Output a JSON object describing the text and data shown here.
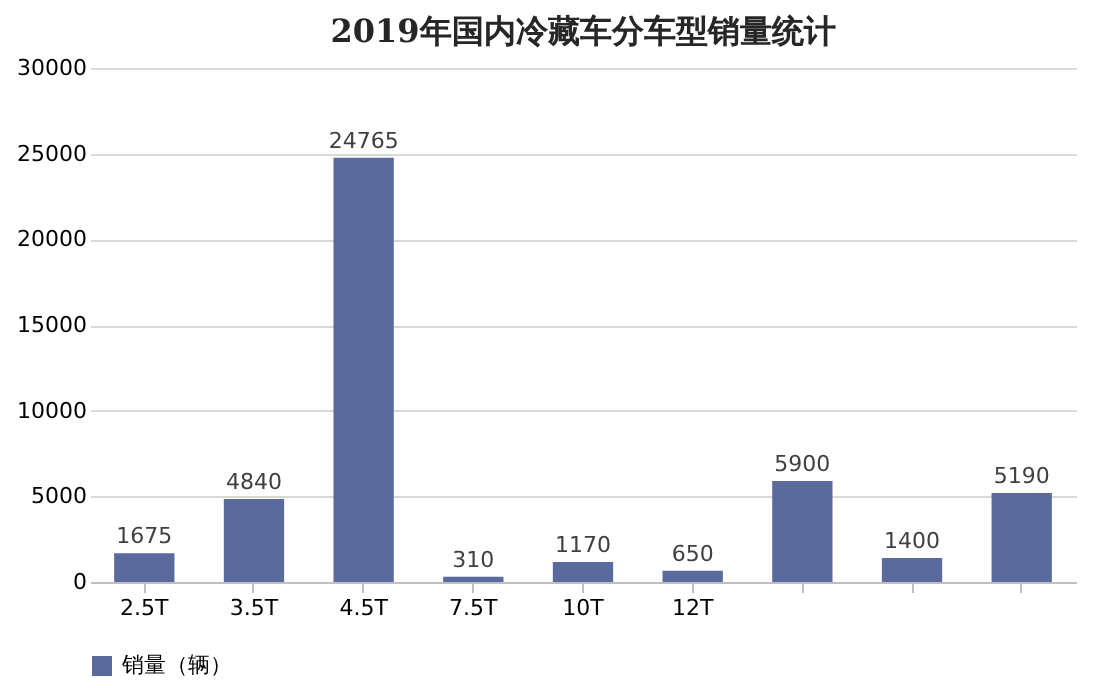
{
  "chart_data": {
    "type": "bar",
    "title": "2019年国内冷藏车分车型销量统计",
    "categories": [
      "2.5T",
      "3.5T",
      "4.5T",
      "7.5T",
      "10T",
      "12T",
      null,
      null,
      null
    ],
    "series": [
      {
        "name": "销量（辆）",
        "color": "#5b6a9c",
        "values": [
          1675,
          4840,
          24765,
          310,
          1170,
          650,
          5900,
          1400,
          5190
        ]
      }
    ],
    "ylim": [
      0,
      30000
    ],
    "yticks": [
      0,
      5000,
      10000,
      15000,
      20000,
      25000,
      30000
    ],
    "grid": "y",
    "legend": "bottom",
    "data_labels": true
  }
}
